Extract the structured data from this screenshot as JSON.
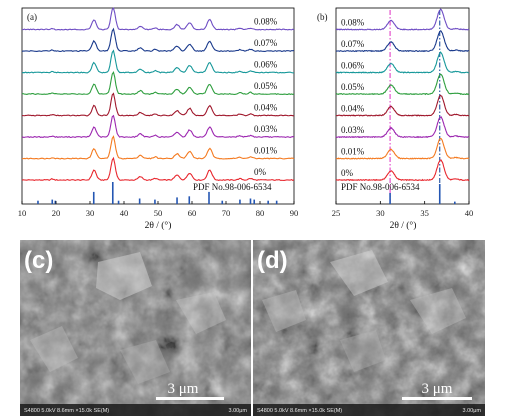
{
  "chart_data": [
    {
      "type": "line",
      "panel_label": "(a)",
      "xlabel": "2θ / (°)",
      "xlim": [
        10,
        90
      ],
      "x_ticks": [
        10,
        20,
        30,
        40,
        50,
        60,
        70,
        80,
        90
      ],
      "reference_label": "PDF No.98-006-6534",
      "reference_peaks": [
        {
          "x": 14.7,
          "h": 0.15
        },
        {
          "x": 18.9,
          "h": 0.2
        },
        {
          "x": 19.8,
          "h": 0.15
        },
        {
          "x": 31.1,
          "h": 0.55
        },
        {
          "x": 36.7,
          "h": 1.0
        },
        {
          "x": 38.4,
          "h": 0.15
        },
        {
          "x": 44.6,
          "h": 0.25
        },
        {
          "x": 49.1,
          "h": 0.2
        },
        {
          "x": 55.6,
          "h": 0.3
        },
        {
          "x": 59.2,
          "h": 0.35
        },
        {
          "x": 65.0,
          "h": 0.55
        },
        {
          "x": 68.9,
          "h": 0.15
        },
        {
          "x": 74.1,
          "h": 0.2
        },
        {
          "x": 77.2,
          "h": 0.25
        },
        {
          "x": 78.3,
          "h": 0.2
        },
        {
          "x": 82.4,
          "h": 0.15
        },
        {
          "x": 84.9,
          "h": 0.15
        }
      ],
      "series": [
        {
          "name": "0%",
          "color": "#e8272e"
        },
        {
          "name": "0.01%",
          "color": "#f47a20"
        },
        {
          "name": "0.03%",
          "color": "#9c27b0"
        },
        {
          "name": "0.04%",
          "color": "#a0182c"
        },
        {
          "name": "0.05%",
          "color": "#2e9e3e"
        },
        {
          "name": "0.06%",
          "color": "#17989a"
        },
        {
          "name": "0.07%",
          "color": "#1a3a8c"
        },
        {
          "name": "0.08%",
          "color": "#6f4ec4"
        }
      ],
      "peaks": [
        {
          "x": 18.9,
          "h": 0.05,
          "w": 0.5
        },
        {
          "x": 31.2,
          "h": 0.45,
          "w": 0.9
        },
        {
          "x": 36.8,
          "h": 1.0,
          "w": 0.9
        },
        {
          "x": 44.8,
          "h": 0.15,
          "w": 0.9
        },
        {
          "x": 49.2,
          "h": 0.08,
          "w": 0.7
        },
        {
          "x": 55.6,
          "h": 0.22,
          "w": 1.0
        },
        {
          "x": 59.3,
          "h": 0.32,
          "w": 1.0
        },
        {
          "x": 65.2,
          "h": 0.45,
          "w": 1.0
        },
        {
          "x": 74.1,
          "h": 0.06,
          "w": 0.8
        },
        {
          "x": 77.2,
          "h": 0.07,
          "w": 0.8
        }
      ]
    },
    {
      "type": "line",
      "panel_label": "(b)",
      "xlabel": "2θ / (°)",
      "xlim": [
        25,
        40
      ],
      "x_ticks": [
        25,
        30,
        35,
        40
      ],
      "reference_label": "PDF No.98-006-6534",
      "reference_peaks": [
        {
          "x": 31.1,
          "h": 0.55
        },
        {
          "x": 36.7,
          "h": 1.0
        },
        {
          "x": 38.4,
          "h": 0.12
        }
      ],
      "guide_lines": [
        {
          "x": 31.1,
          "color": "#e040c8"
        },
        {
          "x": 36.7,
          "color": "#1f4fa0"
        }
      ],
      "series": [
        {
          "name": "0%",
          "color": "#e8272e"
        },
        {
          "name": "0.01%",
          "color": "#f47a20"
        },
        {
          "name": "0.03%",
          "color": "#9c27b0"
        },
        {
          "name": "0.04%",
          "color": "#a0182c"
        },
        {
          "name": "0.05%",
          "color": "#2e9e3e"
        },
        {
          "name": "0.06%",
          "color": "#17989a"
        },
        {
          "name": "0.07%",
          "color": "#1a3a8c"
        },
        {
          "name": "0.08%",
          "color": "#6f4ec4"
        }
      ],
      "peaks": [
        {
          "x": 31.2,
          "h": 0.45,
          "w": 0.55
        },
        {
          "x": 36.8,
          "h": 1.0,
          "w": 0.55
        },
        {
          "x": 38.5,
          "h": 0.05,
          "w": 0.4
        }
      ]
    }
  ],
  "sem_panels": [
    {
      "label": "(c)",
      "scale_text": "3 μm",
      "info": "S4800 5.0kV 8.6mm ×15.0k SE(M)",
      "scale_small": "3.00μm"
    },
    {
      "label": "(d)",
      "scale_text": "3 μm",
      "info": "S4800 5.0kV 8.6mm ×15.0k SE(M)",
      "scale_small": "3.00μm"
    }
  ]
}
